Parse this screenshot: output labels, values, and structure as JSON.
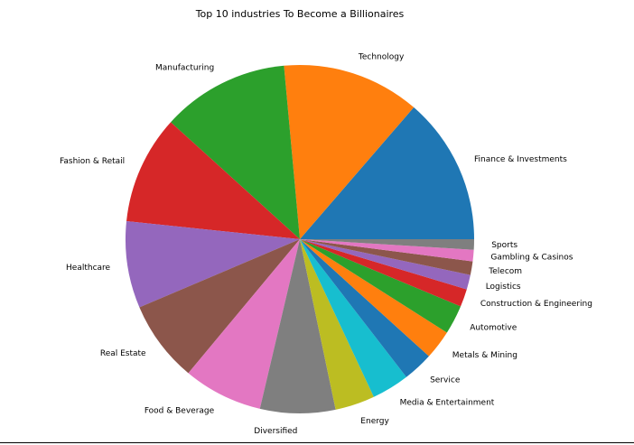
{
  "chart_data": {
    "type": "pie",
    "title": "Top 10 industries To Become a Billionaires",
    "start_angle_deg": 0,
    "direction": "counterclockwise",
    "slices": [
      {
        "label": "Finance & Investments",
        "value": 14.1,
        "color": "#1f77b4"
      },
      {
        "label": "Technology",
        "value": 13.2,
        "color": "#ff7f0e"
      },
      {
        "label": "Manufacturing",
        "value": 12.2,
        "color": "#2ca02c"
      },
      {
        "label": "Fashion & Retail",
        "value": 10.4,
        "color": "#d62728"
      },
      {
        "label": "Healthcare",
        "value": 8.3,
        "color": "#9467bd"
      },
      {
        "label": "Real Estate",
        "value": 7.8,
        "color": "#8c564b"
      },
      {
        "label": "Food & Beverage",
        "value": 7.6,
        "color": "#e377c2"
      },
      {
        "label": "Diversified",
        "value": 7.2,
        "color": "#7f7f7f"
      },
      {
        "label": "Energy",
        "value": 3.8,
        "color": "#bcbd22"
      },
      {
        "label": "Media & Entertainment",
        "value": 3.6,
        "color": "#17becf"
      },
      {
        "label": "Service",
        "value": 2.9,
        "color": "#1f77b4"
      },
      {
        "label": "Metals & Mining",
        "value": 2.8,
        "color": "#ff7f0e"
      },
      {
        "label": "Automotive",
        "value": 2.8,
        "color": "#2ca02c"
      },
      {
        "label": "Construction & Engineering",
        "value": 1.7,
        "color": "#d62728"
      },
      {
        "label": "Logistics",
        "value": 1.4,
        "color": "#9467bd"
      },
      {
        "label": "Telecom",
        "value": 1.3,
        "color": "#8c564b"
      },
      {
        "label": "Gambling & Casinos",
        "value": 1.1,
        "color": "#e377c2"
      },
      {
        "label": "Sports",
        "value": 1.0,
        "color": "#7f7f7f"
      }
    ]
  }
}
